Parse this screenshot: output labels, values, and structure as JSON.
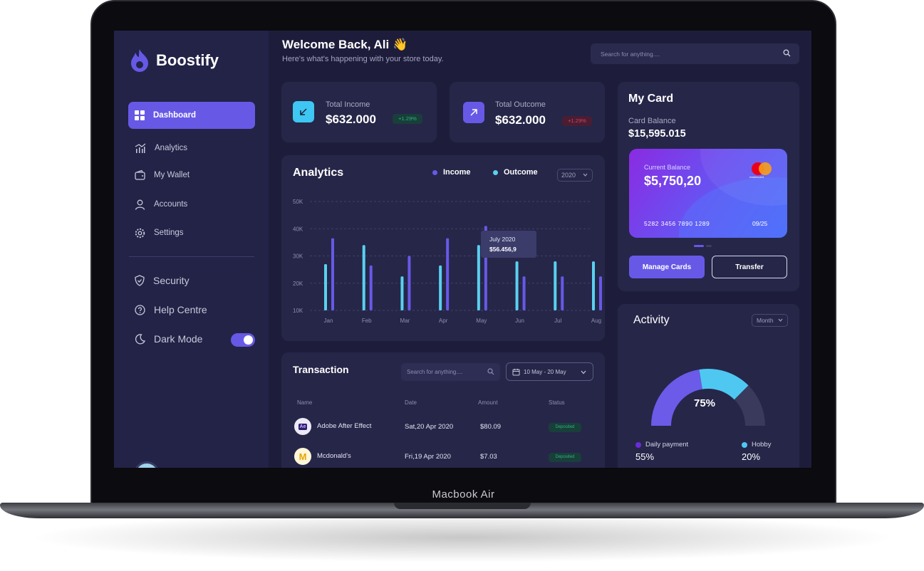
{
  "device": {
    "label": "Macbook Air"
  },
  "sidebar": {
    "brand": "Boostify",
    "nav": [
      {
        "label": "Dashboard",
        "icon": "grid-icon"
      },
      {
        "label": "Analytics",
        "icon": "bar-chart-icon"
      },
      {
        "label": "My Wallet",
        "icon": "wallet-icon"
      },
      {
        "label": "Accounts",
        "icon": "user-icon"
      },
      {
        "label": "Settings",
        "icon": "gear-icon"
      }
    ],
    "secondary": [
      {
        "label": "Security",
        "icon": "shield-icon"
      },
      {
        "label": "Help Centre",
        "icon": "help-icon"
      },
      {
        "label": "Dark Mode",
        "icon": "moon-icon"
      }
    ],
    "dark_mode_on": true
  },
  "header": {
    "title": "Welcome Back, Ali 👋",
    "subtitle": "Here's what's happening with your store today.",
    "search_placeholder": "Search for anything...."
  },
  "stats": {
    "income": {
      "label": "Total Income",
      "value": "$632.000",
      "change": "+1.29%",
      "color": "#3ec7f2"
    },
    "outcome": {
      "label": "Total Outcome",
      "value": "$632.000",
      "change": "+1.29%",
      "color": "#6759e6"
    }
  },
  "analytics": {
    "title": "Analytics",
    "legend_income": "Income",
    "legend_outcome": "Outcome",
    "year": "2020",
    "tooltip": {
      "title": "July 2020",
      "value": "$56.456,9"
    }
  },
  "chart_data": {
    "type": "bar",
    "title": "Analytics",
    "categories": [
      "Jan",
      "Feb",
      "Mar",
      "Apr",
      "May",
      "Jun",
      "Jul",
      "Aug"
    ],
    "series": [
      {
        "name": "Income",
        "color": "#5ad0ef",
        "values": [
          27,
          34,
          22.5,
          26.5,
          34,
          28,
          28,
          28
        ]
      },
      {
        "name": "Outcome",
        "color": "#6759e6",
        "values": [
          36.5,
          26.5,
          30,
          36.5,
          41,
          22.5,
          22.5,
          22.5
        ]
      }
    ],
    "y_ticks": [
      "10K",
      "20K",
      "30K",
      "40K",
      "50K"
    ],
    "ylim": [
      10,
      50
    ],
    "grid": true
  },
  "transaction": {
    "title": "Transaction",
    "search_placeholder": "Search for anything....",
    "date_range": "10 May - 20 May",
    "columns": [
      "Name",
      "Date",
      "Amount",
      "Status"
    ],
    "rows": [
      {
        "logo": "Ae",
        "name": "Adobe After Effect",
        "date": "Sat,20 Apr 2020",
        "amount": "$80.09",
        "status": "Deposited"
      },
      {
        "logo": "M",
        "name": "Mcdonald's",
        "date": "Fri,19 Apr 2020",
        "amount": "$7.03",
        "status": "Deposited"
      }
    ]
  },
  "mycard": {
    "title": "My Card",
    "balance_label": "Card Balance",
    "balance": "$15,595.015",
    "card": {
      "current_label": "Current Balance",
      "current": "$5,750,20",
      "brand_text": "mastercard",
      "number": "5282 3456 7890 1289",
      "expiry": "09/25"
    },
    "manage_label": "Manage Cards",
    "transfer_label": "Transfer"
  },
  "activity": {
    "title": "Activity",
    "period": "Month",
    "percent_label": "75%",
    "percent": 75,
    "legend": [
      {
        "label": "Daily payment",
        "value": "55%",
        "color": "#6b2bd9"
      },
      {
        "label": "Hobby",
        "value": "20%",
        "color": "#4ec8f1"
      }
    ]
  }
}
